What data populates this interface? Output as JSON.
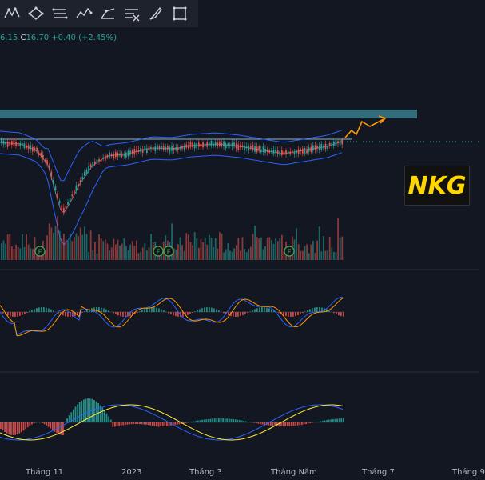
{
  "toolbar": {
    "tools": [
      {
        "icon": "pattern-icon"
      },
      {
        "icon": "shape-icon"
      },
      {
        "icon": "fib-icon"
      },
      {
        "icon": "wave-icon"
      },
      {
        "icon": "projection-icon"
      },
      {
        "icon": "forecast-icon"
      },
      {
        "icon": "brush-icon"
      },
      {
        "icon": "rectangle-icon"
      }
    ]
  },
  "legend": {
    "open_partial": "6.15",
    "close_label": "C",
    "close_value": "16.70",
    "change": "+0.40 (+2.45%)"
  },
  "ticker_badge": "NKG",
  "x_axis_labels": [
    "Tháng 11",
    "2023",
    "Tháng 3",
    "Tháng Năm",
    "Tháng 7",
    "Tháng 9"
  ],
  "event_marker_label": "F",
  "colors": {
    "background": "#131722",
    "up": "#26a69a",
    "down": "#ef5350",
    "band": "#2962ff",
    "resistance_zone": "#3a7d8c",
    "forecast_arrow": "#ff9800",
    "signal_line": "#ffeb3b",
    "badge_text": "#ffd600"
  }
}
